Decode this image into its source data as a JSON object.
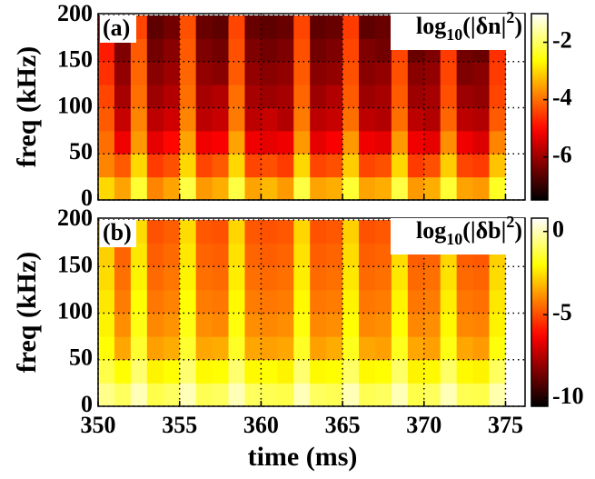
{
  "chart_data": [
    {
      "type": "heatmap",
      "panel_label": "(a)",
      "ylabel": "freq (kHz)",
      "colorbar_label": {
        "base": "log",
        "sub": "10",
        "body": "(|δn|",
        "sup": "2",
        "end": ")"
      },
      "colormap": "hot",
      "grid": true,
      "show_xtick_labels": false,
      "x": [
        350,
        351,
        352,
        353,
        354,
        355,
        356,
        357,
        358,
        359,
        360,
        361,
        362,
        363,
        364,
        365,
        366,
        367,
        368,
        369,
        370,
        371,
        372,
        373,
        374,
        375
      ],
      "y": [
        0,
        25,
        50,
        75,
        100,
        125,
        150,
        175,
        200
      ],
      "values": [
        [
          -3,
          -3.5,
          -2.3,
          -3.8,
          -3.5,
          -2.2,
          -3.6,
          -3.4,
          -2.2,
          -3.5,
          -3.3,
          -3.6,
          -2.2,
          -3.5,
          -3.4,
          -2.3,
          -3.5,
          -3.4,
          -2.2,
          -3.6,
          -3.4,
          -2.3,
          -3.5,
          -3.6,
          -2.4
        ],
        [
          -3.8,
          -4.2,
          -3,
          -4.5,
          -4.3,
          -3,
          -4.4,
          -4.2,
          -3,
          -4.4,
          -4.3,
          -4.5,
          -3,
          -4.4,
          -4.3,
          -3.1,
          -4.4,
          -4.3,
          -3,
          -4.5,
          -4.3,
          -3.1,
          -4.4,
          -4.5,
          -3.2
        ],
        [
          -4,
          -5.2,
          -3.6,
          -5.3,
          -5,
          -3.5,
          -5.2,
          -5.1,
          -3.5,
          -5.2,
          -5.3,
          -5.2,
          -3.6,
          -5.3,
          -5.1,
          -3.6,
          -5.2,
          -5.3,
          -3.6,
          -5.2,
          -5.3,
          -3.7,
          -5.2,
          -5.4,
          -3.8
        ],
        [
          -4.2,
          -5.6,
          -3.8,
          -5.7,
          -5.5,
          -3.8,
          -5.7,
          -5.6,
          -3.9,
          -5.7,
          -5.6,
          -5.8,
          -3.9,
          -5.7,
          -5.6,
          -4,
          -5.7,
          -5.8,
          -4,
          -5.7,
          -5.8,
          -4.1,
          -5.7,
          -5.8,
          -4.2
        ],
        [
          -4.4,
          -5.9,
          -4,
          -6,
          -5.8,
          -4,
          -5.9,
          -5.8,
          -4,
          -5.9,
          -6,
          -5.9,
          -4.1,
          -6,
          -5.8,
          -4.2,
          -6,
          -5.9,
          -4.2,
          -6,
          -5.9,
          -4.3,
          -6,
          -6.1,
          -4.4
        ],
        [
          -4.6,
          -6.1,
          -4.1,
          -6.2,
          -6,
          -4.1,
          -6.1,
          -6.2,
          -4.2,
          -6.1,
          -6.2,
          -6.1,
          -4.2,
          -6.2,
          -6.1,
          -4.3,
          -6.2,
          -6.1,
          -4.3,
          -6.2,
          -6.1,
          -4.4,
          -6.3,
          -6.2,
          -4.5
        ],
        [
          -4.8,
          -6.3,
          -4.2,
          -6.4,
          -6.2,
          -4.2,
          -6.3,
          -6.4,
          -4.3,
          -6.3,
          -6.4,
          -6.3,
          -4.3,
          -6.4,
          -6.3,
          -4.4,
          -6.3,
          -6.4,
          -4.4,
          -6.5,
          -6.3,
          -4.5,
          -6.4,
          -6.5,
          -4.6
        ],
        [
          -5,
          -6.5,
          -4.4,
          -6.6,
          -6.4,
          -4.3,
          -6.5,
          -6.6,
          -4.4,
          -6.5,
          -6.6,
          -6.5,
          -4.4,
          -6.6,
          -6.5,
          -4.5,
          -6.6,
          -6.5,
          -4.5,
          -6.6,
          -6.5,
          -4.6,
          -6.6,
          -6.7,
          -4.7
        ]
      ],
      "xlim": [
        350,
        376.2
      ],
      "xticks": [
        350,
        355,
        360,
        365,
        370,
        375
      ],
      "ylim": [
        0,
        202
      ],
      "yticks": [
        0,
        50,
        100,
        150,
        200
      ],
      "clim": [
        -7.5,
        -1
      ],
      "cticks": [
        -6,
        -4,
        -2
      ]
    },
    {
      "type": "heatmap",
      "panel_label": "(b)",
      "ylabel": "freq (kHz)",
      "xlabel": "time (ms)",
      "colorbar_label": {
        "base": "log",
        "sub": "10",
        "body": "(|δb|",
        "sup": "2",
        "end": ")"
      },
      "colormap": "hot",
      "grid": true,
      "show_xtick_labels": true,
      "x": [
        350,
        351,
        352,
        353,
        354,
        355,
        356,
        357,
        358,
        359,
        360,
        361,
        362,
        363,
        364,
        365,
        366,
        367,
        368,
        369,
        370,
        371,
        372,
        373,
        374,
        375
      ],
      "y": [
        0,
        25,
        50,
        75,
        100,
        125,
        150,
        175,
        200
      ],
      "values": [
        [
          -0.5,
          -1,
          0,
          -1.2,
          -1,
          0,
          -1.1,
          -1,
          0,
          -1,
          -1.1,
          -1.2,
          0,
          -1,
          -1.1,
          0,
          -1.1,
          -1,
          0,
          -1.2,
          -1,
          0,
          -1.1,
          -1.2,
          -0.1
        ],
        [
          -1.2,
          -2,
          -0.8,
          -2.2,
          -2,
          -0.8,
          -2.1,
          -2,
          -0.8,
          -2.1,
          -2,
          -2.2,
          -0.8,
          -2.1,
          -2,
          -0.9,
          -2.1,
          -2,
          -0.9,
          -2.2,
          -2.1,
          -0.9,
          -2.1,
          -2.2,
          -1
        ],
        [
          -2,
          -3.5,
          -1.5,
          -3.6,
          -3.4,
          -1.5,
          -3.5,
          -3.4,
          -1.6,
          -3.5,
          -3.6,
          -3.5,
          -1.6,
          -3.6,
          -3.4,
          -1.7,
          -3.5,
          -3.6,
          -1.7,
          -3.5,
          -3.6,
          -1.8,
          -3.5,
          -3.7,
          -1.9
        ],
        [
          -2.2,
          -3.9,
          -1.8,
          -4,
          -3.8,
          -1.8,
          -3.9,
          -4,
          -1.9,
          -3.9,
          -4,
          -3.9,
          -1.9,
          -4,
          -3.9,
          -2,
          -4,
          -3.9,
          -2,
          -4,
          -3.9,
          -2.1,
          -4,
          -4.1,
          -2.2
        ],
        [
          -2.4,
          -4.2,
          -2,
          -4.3,
          -4.1,
          -2,
          -4.2,
          -4.3,
          -2.1,
          -4.2,
          -4.3,
          -4.2,
          -2.1,
          -4.3,
          -4.2,
          -2.2,
          -4.3,
          -4.2,
          -2.2,
          -4.3,
          -4.2,
          -2.3,
          -4.3,
          -4.4,
          -2.4
        ],
        [
          -2.6,
          -4.4,
          -2.2,
          -4.5,
          -4.3,
          -2.2,
          -4.4,
          -4.5,
          -2.3,
          -4.4,
          -4.5,
          -4.4,
          -2.3,
          -4.5,
          -4.4,
          -2.4,
          -4.5,
          -4.4,
          -2.4,
          -4.5,
          -4.4,
          -2.5,
          -4.5,
          -4.6,
          -2.6
        ],
        [
          -2.8,
          -4.6,
          -2.4,
          -4.7,
          -4.5,
          -2.4,
          -4.6,
          -4.7,
          -2.5,
          -4.6,
          -4.7,
          -4.6,
          -2.5,
          -4.7,
          -4.6,
          -2.6,
          -4.7,
          -4.6,
          -2.6,
          -4.7,
          -4.6,
          -2.7,
          -4.7,
          -4.8,
          -2.8
        ],
        [
          -3,
          -4.8,
          -2.6,
          -4.9,
          -4.7,
          -2.6,
          -4.8,
          -4.9,
          -2.7,
          -4.8,
          -4.9,
          -4.8,
          -2.7,
          -4.9,
          -4.8,
          -2.8,
          -4.9,
          -4.8,
          -2.8,
          -4.9,
          -4.8,
          -2.9,
          -4.9,
          -5,
          -3
        ]
      ],
      "xlim": [
        350,
        376.2
      ],
      "xticks": [
        350,
        355,
        360,
        365,
        370,
        375
      ],
      "ylim": [
        0,
        202
      ],
      "yticks": [
        0,
        50,
        100,
        150,
        200
      ],
      "clim": [
        -10.5,
        0.8
      ],
      "cticks": [
        -10,
        -5,
        0
      ]
    }
  ]
}
